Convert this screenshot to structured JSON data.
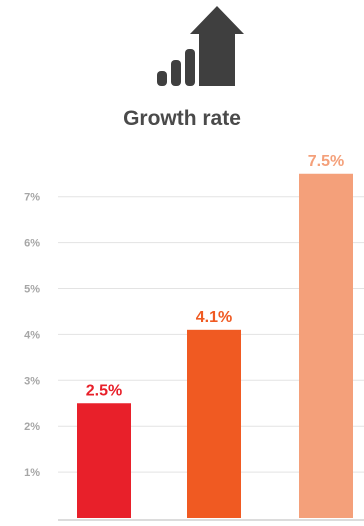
{
  "header": {
    "icon": "growth-bars-arrow-icon",
    "title": "Growth rate"
  },
  "colors": {
    "icon": "#3f3f3f",
    "title": "#4a4a4a",
    "tick_label": "#a6a6a6",
    "gridline": "#e3e3e3",
    "axis": "#d0d0d0"
  },
  "chart_data": {
    "type": "bar",
    "title": "Growth rate",
    "xlabel": "",
    "ylabel": "",
    "ylim": [
      0,
      7.8
    ],
    "yticks": [
      1,
      2,
      3,
      4,
      5,
      6,
      7
    ],
    "ytick_labels": [
      "1%",
      "2%",
      "3%",
      "4%",
      "5%",
      "6%",
      "7%"
    ],
    "grid": true,
    "legend": "none",
    "values": [
      2.5,
      4.1,
      7.5
    ],
    "data_labels": [
      "2.5%",
      "4.1%",
      "7.5%"
    ],
    "bar_colors": [
      "#e8202a",
      "#f05a22",
      "#f4a07a"
    ]
  }
}
